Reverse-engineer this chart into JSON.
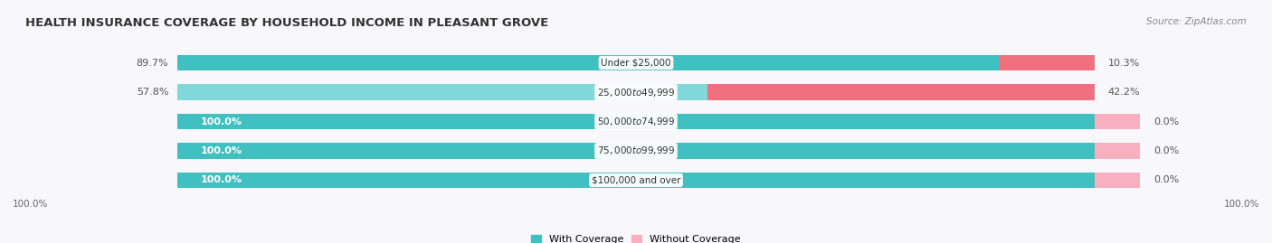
{
  "title": "HEALTH INSURANCE COVERAGE BY HOUSEHOLD INCOME IN PLEASANT GROVE",
  "source": "Source: ZipAtlas.com",
  "categories": [
    "Under $25,000",
    "$25,000 to $49,999",
    "$50,000 to $74,999",
    "$75,000 to $99,999",
    "$100,000 and over"
  ],
  "with_coverage": [
    89.7,
    57.8,
    100.0,
    100.0,
    100.0
  ],
  "without_coverage": [
    10.3,
    42.2,
    0.0,
    0.0,
    0.0
  ],
  "color_with": "#40c0c0",
  "color_with_light": "#80d8d8",
  "color_without": "#f07080",
  "color_without_light": "#f8b0c0",
  "color_bg_bar": "#e4e4ec",
  "color_bg_fig": "#f8f8fc",
  "title_fontsize": 9.5,
  "source_fontsize": 7.5,
  "label_fontsize": 8,
  "category_fontsize": 7.5,
  "legend_fontsize": 8,
  "bar_height": 0.55,
  "bottom_label": "100.0%"
}
